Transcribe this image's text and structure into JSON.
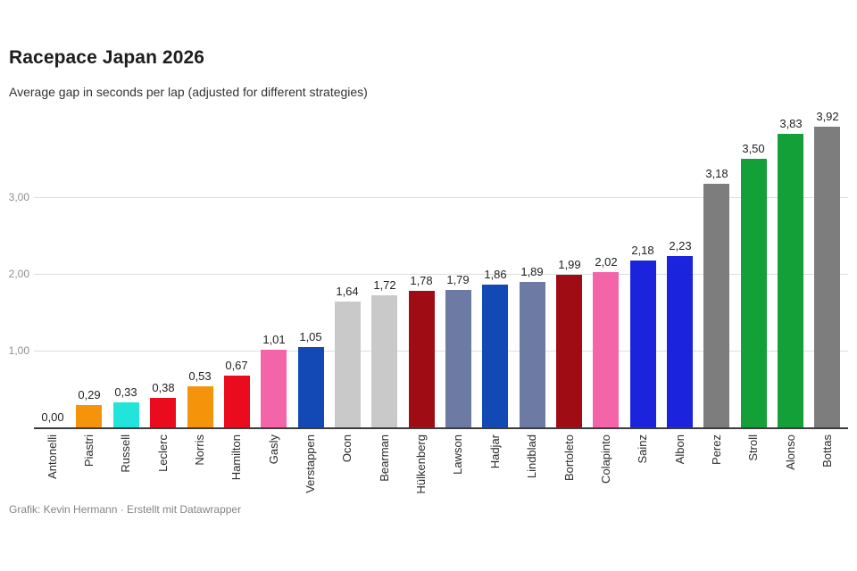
{
  "header": {
    "title": "Racepace Japan 2026",
    "subtitle": "Average gap in seconds per lap (adjusted for different strategies)"
  },
  "footer": {
    "credit": "Grafik: Kevin Hermann · Erstellt mit Datawrapper"
  },
  "colors": {
    "background": "#ffffff",
    "gridline": "#dedede",
    "axis_line": "#3c3c3c",
    "tick_label_text": "#8f8f8f",
    "value_label_text": "#222222",
    "driver_label_text": "#2b2b2b",
    "mclaren_orange": "#F5940A",
    "mercedes_cyan": "#22E4DA",
    "ferrari_red": "#EA0C1E",
    "alpine_pink": "#F464A8",
    "redbull_blue": "#1349B5",
    "haas_gray": "#C9C9C9",
    "dark_red": "#A00C14",
    "racingbulls_slate": "#6C7AA4",
    "williams_blue": "#1B23DC",
    "gray": "#7D7D7D",
    "astonmartin_green": "#14A038"
  },
  "chart_data": {
    "type": "bar",
    "title": "Racepace Japan 2026",
    "subtitle": "Average gap in seconds per lap (adjusted for different strategies)",
    "xlabel": "",
    "ylabel": "",
    "ylim": [
      0,
      4.2
    ],
    "grid": true,
    "legend_position": "none",
    "decimal_separator": ",",
    "yticks": [
      {
        "value": 1,
        "label": "1,00"
      },
      {
        "value": 2,
        "label": "2,00"
      },
      {
        "value": 3,
        "label": "3,00"
      }
    ],
    "bars": [
      {
        "driver": "Antonelli",
        "value": 0.0,
        "label": "0,00",
        "color": "#22E4DA"
      },
      {
        "driver": "Piastri",
        "value": 0.29,
        "label": "0,29",
        "color": "#F5940A"
      },
      {
        "driver": "Russell",
        "value": 0.33,
        "label": "0,33",
        "color": "#22E4DA"
      },
      {
        "driver": "Leclerc",
        "value": 0.38,
        "label": "0,38",
        "color": "#EA0C1E"
      },
      {
        "driver": "Norris",
        "value": 0.53,
        "label": "0,53",
        "color": "#F5940A"
      },
      {
        "driver": "Hamilton",
        "value": 0.67,
        "label": "0,67",
        "color": "#EA0C1E"
      },
      {
        "driver": "Gasly",
        "value": 1.01,
        "label": "1,01",
        "color": "#F464A8"
      },
      {
        "driver": "Verstappen",
        "value": 1.05,
        "label": "1,05",
        "color": "#1349B5"
      },
      {
        "driver": "Ocon",
        "value": 1.64,
        "label": "1,64",
        "color": "#C9C9C9"
      },
      {
        "driver": "Bearman",
        "value": 1.72,
        "label": "1,72",
        "color": "#C9C9C9"
      },
      {
        "driver": "Hülkenberg",
        "value": 1.78,
        "label": "1,78",
        "color": "#A00C14"
      },
      {
        "driver": "Lawson",
        "value": 1.79,
        "label": "1,79",
        "color": "#6C7AA4"
      },
      {
        "driver": "Hadjar",
        "value": 1.86,
        "label": "1,86",
        "color": "#1349B5"
      },
      {
        "driver": "Lindblad",
        "value": 1.89,
        "label": "1,89",
        "color": "#6C7AA4"
      },
      {
        "driver": "Bortoleto",
        "value": 1.99,
        "label": "1,99",
        "color": "#A00C14"
      },
      {
        "driver": "Colapinto",
        "value": 2.02,
        "label": "2,02",
        "color": "#F464A8"
      },
      {
        "driver": "Sainz",
        "value": 2.18,
        "label": "2,18",
        "color": "#1B23DC"
      },
      {
        "driver": "Albon",
        "value": 2.23,
        "label": "2,23",
        "color": "#1B23DC"
      },
      {
        "driver": "Perez",
        "value": 3.18,
        "label": "3,18",
        "color": "#7D7D7D"
      },
      {
        "driver": "Stroll",
        "value": 3.5,
        "label": "3,50",
        "color": "#14A038"
      },
      {
        "driver": "Alonso",
        "value": 3.83,
        "label": "3,83",
        "color": "#14A038"
      },
      {
        "driver": "Bottas",
        "value": 3.92,
        "label": "3,92",
        "color": "#7D7D7D"
      }
    ]
  }
}
